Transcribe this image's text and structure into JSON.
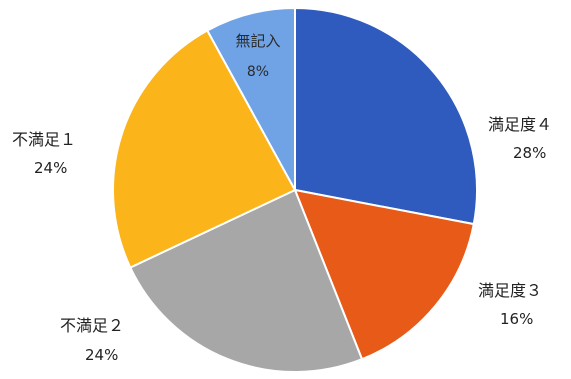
{
  "chart_data": {
    "type": "pie",
    "title": "",
    "slices": [
      {
        "label": "満足度４",
        "value": 28,
        "percent_text": "28%",
        "color": "#2E5BBD"
      },
      {
        "label": "満足度３",
        "value": 16,
        "percent_text": "16%",
        "color": "#E85A18"
      },
      {
        "label": "不満足２",
        "value": 24,
        "percent_text": "24%",
        "color": "#A7A7A7"
      },
      {
        "label": "不満足１",
        "value": 24,
        "percent_text": "24%",
        "color": "#FBB419"
      },
      {
        "label": "無記入",
        "value": 8,
        "percent_text": "8%",
        "color": "#6FA3E6"
      }
    ],
    "legend": "none"
  }
}
